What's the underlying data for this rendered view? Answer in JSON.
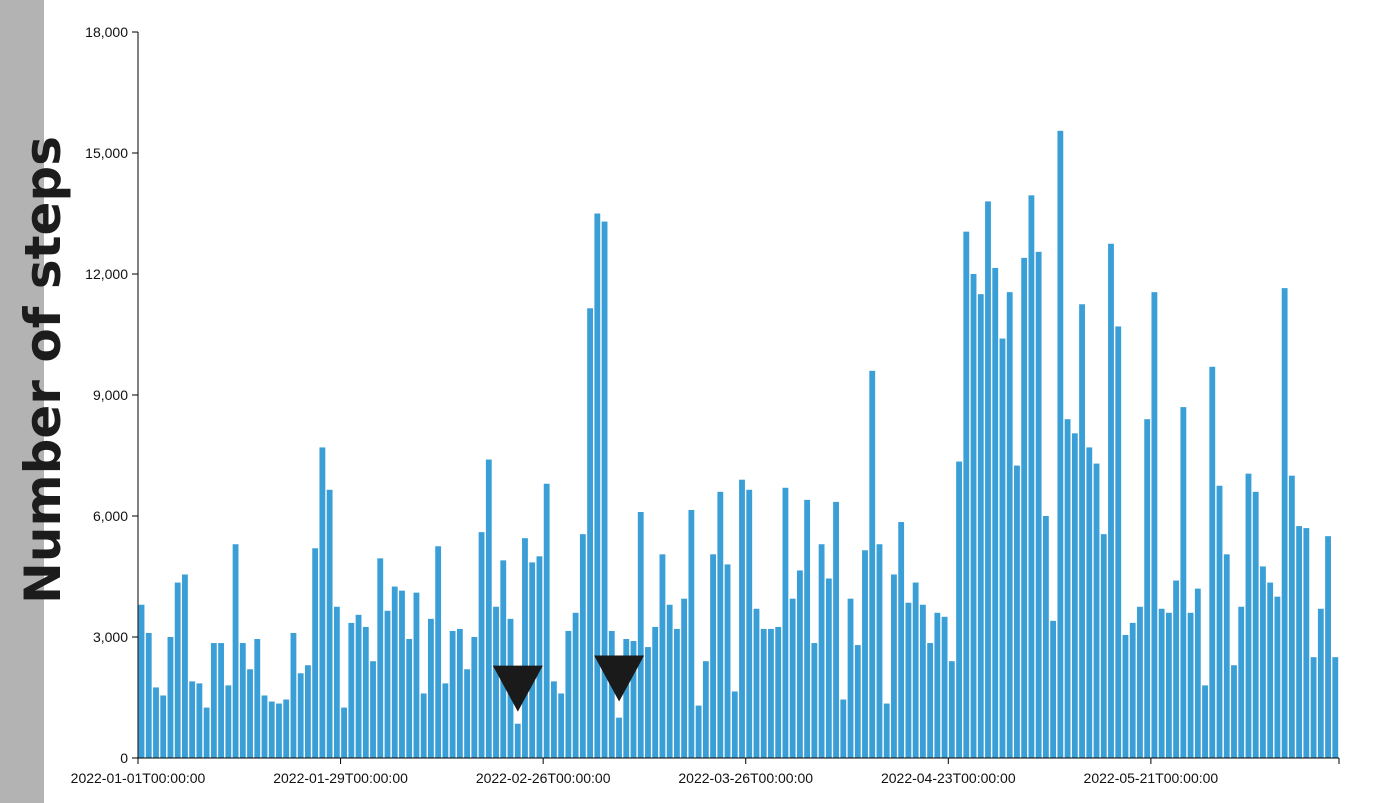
{
  "chart_data": {
    "type": "bar",
    "title": "",
    "xlabel": "",
    "ylabel": "Number of steps",
    "ylim": [
      0,
      18000
    ],
    "yticks": [
      0,
      3000,
      6000,
      9000,
      12000,
      15000,
      18000
    ],
    "ytick_labels": [
      "0",
      "3,000",
      "6,000",
      "9,000",
      "12,000",
      "15,000",
      "18,000"
    ],
    "x_start": "2022-01-01",
    "xticks": [
      "2022-01-01T00:00:00",
      "2022-01-29T00:00:00",
      "2022-02-26T00:00:00",
      "2022-03-26T00:00:00",
      "2022-04-23T00:00:00",
      "2022-05-21T00:00:00"
    ],
    "bar_color": "#3a9fd6",
    "values": [
      3800,
      3100,
      1750,
      1550,
      3000,
      4350,
      4550,
      1900,
      1850,
      1250,
      2850,
      2850,
      1800,
      5300,
      2850,
      2200,
      2950,
      1550,
      1400,
      1350,
      1450,
      3100,
      2100,
      2300,
      5200,
      7700,
      6650,
      3750,
      1250,
      3350,
      3550,
      3250,
      2400,
      4950,
      3650,
      4250,
      4150,
      2950,
      4100,
      1600,
      3450,
      5250,
      1850,
      3150,
      3200,
      2200,
      3000,
      5600,
      7400,
      3750,
      4900,
      3450,
      850,
      5450,
      4850,
      5000,
      6800,
      1900,
      1600,
      3150,
      3600,
      5550,
      11150,
      13500,
      13300,
      3150,
      1000,
      2950,
      2900,
      6100,
      2750,
      3250,
      5050,
      3800,
      3200,
      3950,
      6150,
      1300,
      2400,
      5050,
      6600,
      4800,
      1650,
      6900,
      6650,
      3700,
      3200,
      3200,
      3250,
      6700,
      3950,
      4650,
      6400,
      2850,
      5300,
      4450,
      6350,
      1450,
      3950,
      2800,
      5150,
      9600,
      5300,
      1350,
      4550,
      5850,
      3850,
      4350,
      3800,
      2850,
      3600,
      3500,
      2400,
      7350,
      13050,
      12000,
      11500,
      13800,
      12150,
      10400,
      11550,
      7250,
      12400,
      13950,
      12550,
      6000,
      3400,
      15550,
      8400,
      8050,
      11250,
      7700,
      7300,
      5550,
      12750,
      10700,
      3050,
      3350,
      3750,
      8400,
      11550,
      3700,
      3600,
      4400,
      8700,
      3600,
      4200,
      1800,
      9700,
      6750,
      5050,
      2300,
      3750,
      7050,
      6600,
      4750,
      4350,
      4000,
      11650,
      7000,
      5750,
      5700,
      2500,
      3700,
      5500,
      2500
    ],
    "annotations": [
      {
        "type": "down-triangle-marker",
        "x_index": 52,
        "tip_value": 1150,
        "color": "#1a1a1a"
      },
      {
        "type": "down-triangle-marker",
        "x_index": 66,
        "tip_value": 1400,
        "color": "#1a1a1a"
      }
    ]
  }
}
